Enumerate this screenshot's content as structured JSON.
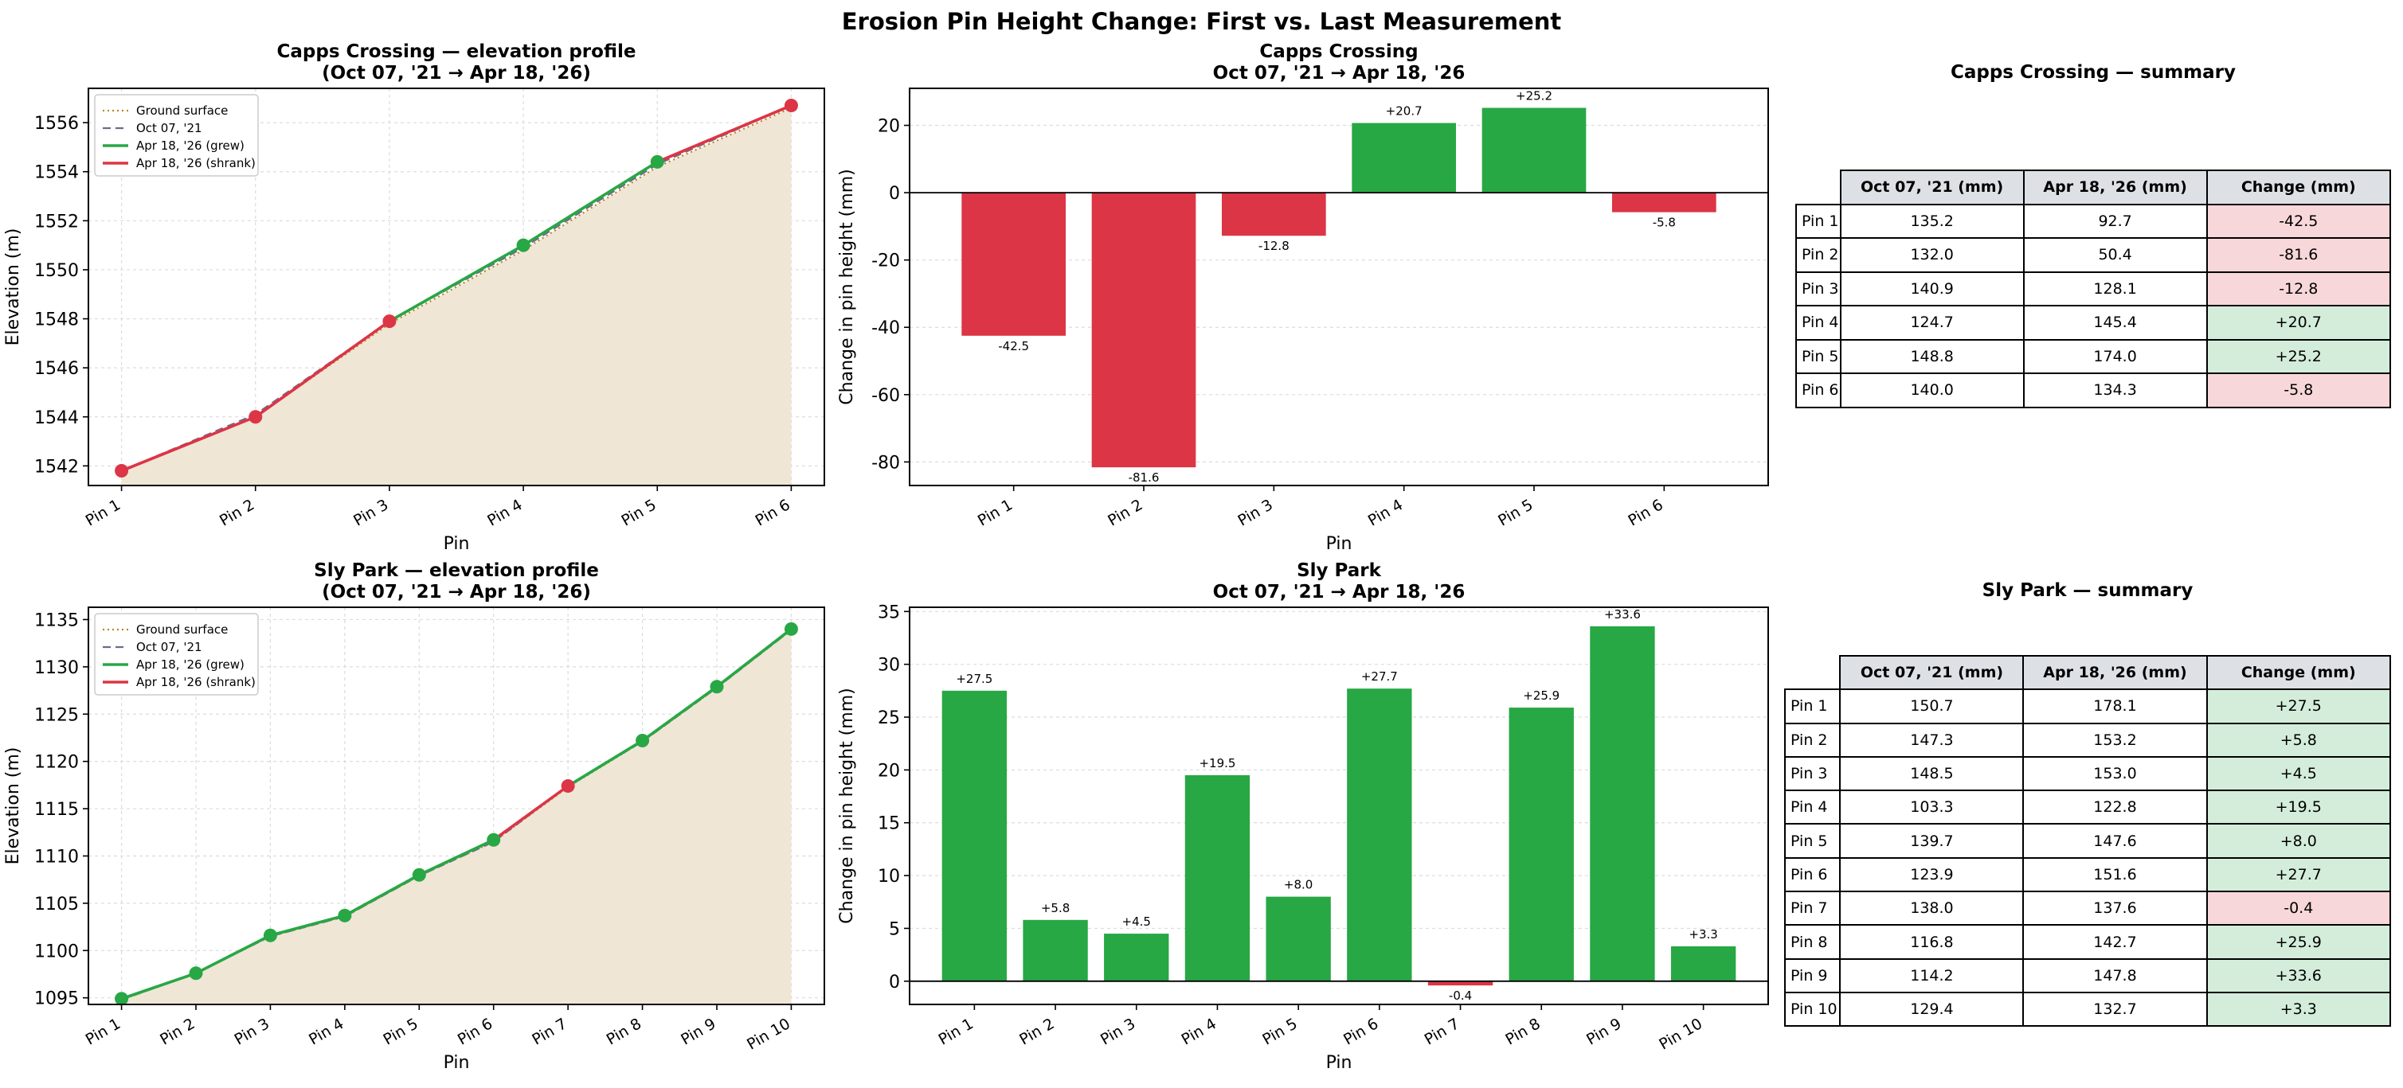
{
  "suptitle": "Erosion Pin Height Change: First vs. Last Measurement",
  "colors": {
    "grew": "#28a745",
    "shrank": "#dc3545",
    "ground": "#b8862b",
    "ground_fill": "#f0e6d6",
    "first": "#6c6c8a"
  },
  "chart_data": [
    {
      "type": "line",
      "title": "Capps Crossing — elevation profile\n(Oct 07, '21 → Apr 18, '26)",
      "xlabel": "Pin",
      "ylabel": "Elevation (m)",
      "ylim": [
        1541.2,
        1557.4
      ],
      "yticks": [
        1542,
        1544,
        1546,
        1548,
        1550,
        1552,
        1554,
        1556
      ],
      "categories": [
        "Pin 1",
        "Pin 2",
        "Pin 3",
        "Pin 4",
        "Pin 5",
        "Pin 6"
      ],
      "legend": [
        "Ground surface",
        "Oct 07, '21",
        "Apr 18, '26 (grew)",
        "Apr 18, '26 (shrank)"
      ],
      "legend_position": "upper-left",
      "ground": [
        1541.8,
        1544.0,
        1547.8,
        1550.8,
        1554.2,
        1556.6
      ],
      "first": [
        1541.8,
        1544.1,
        1547.9,
        1550.9,
        1554.3,
        1556.7
      ],
      "last": [
        1541.8,
        1544.0,
        1547.9,
        1551.0,
        1554.4,
        1556.7
      ],
      "change_sign": [
        -1,
        -1,
        -1,
        1,
        1,
        -1
      ]
    },
    {
      "type": "bar",
      "title": "Capps Crossing\nOct 07, '21 → Apr 18, '26",
      "xlabel": "Pin",
      "ylabel": "Change in pin height (mm)",
      "ylim": [
        -87,
        31
      ],
      "yticks": [
        -80,
        -60,
        -40,
        -20,
        0,
        20
      ],
      "categories": [
        "Pin 1",
        "Pin 2",
        "Pin 3",
        "Pin 4",
        "Pin 5",
        "Pin 6"
      ],
      "values": [
        -42.5,
        -81.6,
        -12.8,
        20.7,
        25.2,
        -5.8
      ],
      "labels": [
        "-42.5",
        "-81.6",
        "-12.8",
        "+20.7",
        "+25.2",
        "-5.8"
      ]
    },
    {
      "type": "line",
      "title": "Sly Park — elevation profile\n(Oct 07, '21 → Apr 18, '26)",
      "xlabel": "Pin",
      "ylabel": "Elevation (m)",
      "ylim": [
        1094.3,
        1136.3
      ],
      "yticks": [
        1095,
        1100,
        1105,
        1110,
        1115,
        1120,
        1125,
        1130,
        1135
      ],
      "categories": [
        "Pin 1",
        "Pin 2",
        "Pin 3",
        "Pin 4",
        "Pin 5",
        "Pin 6",
        "Pin 7",
        "Pin 8",
        "Pin 9",
        "Pin 10"
      ],
      "legend": [
        "Ground surface",
        "Oct 07, '21",
        "Apr 18, '26 (grew)",
        "Apr 18, '26 (shrank)"
      ],
      "legend_position": "upper-left",
      "ground": [
        1094.8,
        1097.6,
        1101.5,
        1103.6,
        1107.9,
        1111.5,
        1117.3,
        1122.1,
        1127.8,
        1133.9
      ],
      "first": [
        1094.8,
        1097.6,
        1101.5,
        1103.6,
        1107.9,
        1111.5,
        1117.4,
        1122.1,
        1127.8,
        1133.9
      ],
      "last": [
        1094.9,
        1097.6,
        1101.6,
        1103.7,
        1108.0,
        1111.7,
        1117.4,
        1122.2,
        1127.9,
        1134.0
      ],
      "change_sign": [
        1,
        1,
        1,
        1,
        1,
        1,
        -1,
        1,
        1,
        1
      ]
    },
    {
      "type": "bar",
      "title": "Sly Park\nOct 07, '21 → Apr 18, '26",
      "xlabel": "Pin",
      "ylabel": "Change in pin height (mm)",
      "ylim": [
        -2.2,
        35.4
      ],
      "yticks": [
        0,
        5,
        10,
        15,
        20,
        25,
        30,
        35
      ],
      "categories": [
        "Pin 1",
        "Pin 2",
        "Pin 3",
        "Pin 4",
        "Pin 5",
        "Pin 6",
        "Pin 7",
        "Pin 8",
        "Pin 9",
        "Pin 10"
      ],
      "values": [
        27.5,
        5.8,
        4.5,
        19.5,
        8.0,
        27.7,
        -0.4,
        25.9,
        33.6,
        3.3
      ],
      "labels": [
        "+27.5",
        "+5.8",
        "+4.5",
        "+19.5",
        "+8.0",
        "+27.7",
        "-0.4",
        "+25.9",
        "+33.6",
        "+3.3"
      ]
    },
    {
      "type": "table",
      "title": "Capps Crossing — summary",
      "columns": [
        "Oct 07, '21 (mm)",
        "Apr 18, '26 (mm)",
        "Change (mm)"
      ],
      "rows": [
        {
          "pin": "Pin 1",
          "first": "135.2",
          "last": "92.7",
          "change": "-42.5"
        },
        {
          "pin": "Pin 2",
          "first": "132.0",
          "last": "50.4",
          "change": "-81.6"
        },
        {
          "pin": "Pin 3",
          "first": "140.9",
          "last": "128.1",
          "change": "-12.8"
        },
        {
          "pin": "Pin 4",
          "first": "124.7",
          "last": "145.4",
          "change": "+20.7"
        },
        {
          "pin": "Pin 5",
          "first": "148.8",
          "last": "174.0",
          "change": "+25.2"
        },
        {
          "pin": "Pin 6",
          "first": "140.0",
          "last": "134.3",
          "change": "-5.8"
        }
      ]
    },
    {
      "type": "table",
      "title": "Sly Park — summary",
      "columns": [
        "Oct 07, '21 (mm)",
        "Apr 18, '26 (mm)",
        "Change (mm)"
      ],
      "rows": [
        {
          "pin": "Pin 1",
          "first": "150.7",
          "last": "178.1",
          "change": "+27.5"
        },
        {
          "pin": "Pin 2",
          "first": "147.3",
          "last": "153.2",
          "change": "+5.8"
        },
        {
          "pin": "Pin 3",
          "first": "148.5",
          "last": "153.0",
          "change": "+4.5"
        },
        {
          "pin": "Pin 4",
          "first": "103.3",
          "last": "122.8",
          "change": "+19.5"
        },
        {
          "pin": "Pin 5",
          "first": "139.7",
          "last": "147.6",
          "change": "+8.0"
        },
        {
          "pin": "Pin 6",
          "first": "123.9",
          "last": "151.6",
          "change": "+27.7"
        },
        {
          "pin": "Pin 7",
          "first": "138.0",
          "last": "137.6",
          "change": "-0.4"
        },
        {
          "pin": "Pin 8",
          "first": "116.8",
          "last": "142.7",
          "change": "+25.9"
        },
        {
          "pin": "Pin 9",
          "first": "114.2",
          "last": "147.8",
          "change": "+33.6"
        },
        {
          "pin": "Pin 10",
          "first": "129.4",
          "last": "132.7",
          "change": "+3.3"
        }
      ]
    }
  ]
}
